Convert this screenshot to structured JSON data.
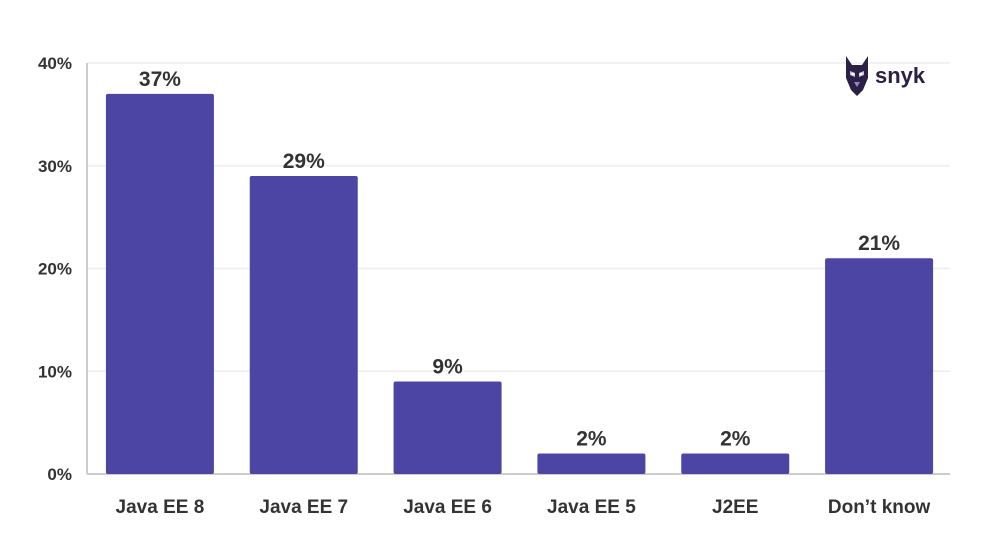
{
  "chart_data": {
    "type": "bar",
    "categories": [
      "Java EE 8",
      "Java EE 7",
      "Java EE 6",
      "Java EE 5",
      "J2EE",
      "Don’t know"
    ],
    "values": [
      37,
      29,
      9,
      2,
      2,
      21
    ],
    "value_labels": [
      "37%",
      "29%",
      "9%",
      "2%",
      "2%",
      "21%"
    ],
    "y_ticks": [
      0,
      10,
      20,
      30,
      40
    ],
    "y_tick_labels": [
      "0%",
      "10%",
      "20%",
      "30%",
      "40%"
    ],
    "ylim": [
      0,
      40
    ],
    "grid": true,
    "title": "",
    "xlabel": "",
    "ylabel": "",
    "bar_color": "#4c45a3",
    "text_color": "#333333",
    "grid_color": "#eeeeee"
  },
  "brand": {
    "logo_text": "snyk",
    "logo_icon": "doberman-icon",
    "logo_color": "#2b2145"
  }
}
